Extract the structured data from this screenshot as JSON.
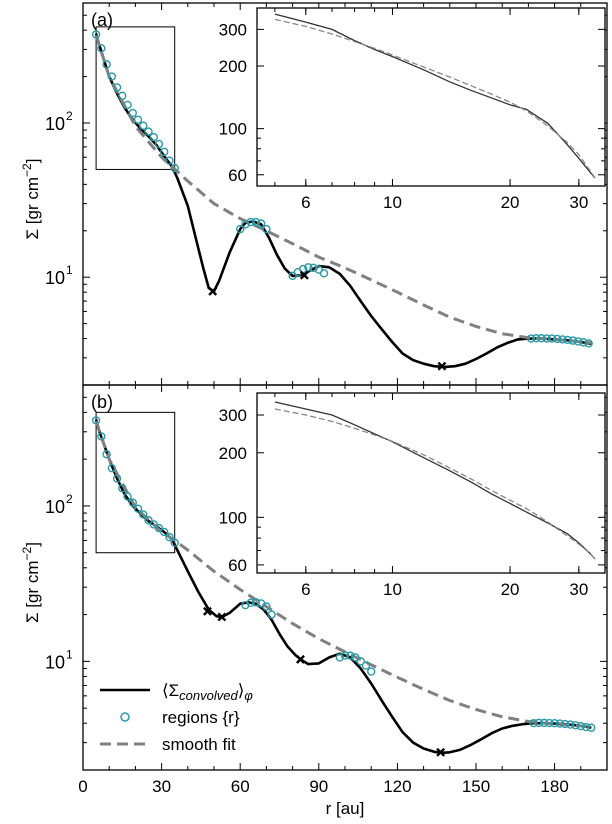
{
  "chart_data": [
    {
      "type": "line",
      "panel_label": "(a)",
      "ylabel_main": "Σ [gr cm",
      "ylabel_exp": "−2",
      "ylabel_tail": "]",
      "xlim": [
        0,
        200
      ],
      "ylim": [
        2.0,
        600
      ],
      "y_scale": "log",
      "y_ticks": [
        {
          "value": 10,
          "base": "10",
          "exp": "1"
        },
        {
          "value": 100,
          "base": "10",
          "exp": "2"
        }
      ],
      "series": [
        {
          "name": "⟨Σconvolved⟩φ",
          "style": "solid-black",
          "x": [
            5,
            6,
            10,
            13,
            16,
            19,
            22,
            25,
            28,
            31,
            34,
            36,
            40,
            43,
            46,
            48,
            50,
            52,
            56,
            60,
            62,
            65,
            68,
            71,
            74,
            77,
            80,
            83,
            86,
            90,
            94,
            98,
            102,
            106,
            110,
            114,
            118,
            122,
            126,
            130,
            134,
            138,
            142,
            146,
            150,
            154,
            158,
            162,
            166,
            170,
            175,
            180,
            185,
            190,
            194
          ],
          "y": [
            380,
            330,
            200,
            155,
            125,
            105,
            92,
            82,
            72,
            61,
            52,
            44,
            29,
            18,
            11.3,
            8.5,
            8.1,
            9.5,
            14.5,
            20.5,
            22.5,
            23,
            22,
            18,
            14,
            11.4,
            10.2,
            10.3,
            10.9,
            11.8,
            11.6,
            10.5,
            8.8,
            7.0,
            5.6,
            4.6,
            3.8,
            3.2,
            2.9,
            2.75,
            2.65,
            2.62,
            2.65,
            2.75,
            2.95,
            3.2,
            3.5,
            3.75,
            3.95,
            4.0,
            4.0,
            3.95,
            3.9,
            3.8,
            3.7
          ]
        },
        {
          "name": "smooth fit",
          "style": "dashed-gray",
          "x": [
            5,
            10,
            20,
            30,
            34,
            40,
            50,
            60,
            70,
            80,
            90,
            100,
            110,
            120,
            130,
            140,
            150,
            160,
            170,
            180,
            194
          ],
          "y": [
            370,
            200,
            95,
            60,
            52,
            42,
            30,
            24,
            20,
            16.5,
            13.5,
            11.5,
            9.6,
            8.0,
            6.6,
            5.5,
            4.8,
            4.3,
            4.05,
            3.95,
            3.75
          ]
        }
      ],
      "regions_label": "regions {r}",
      "region_markers": {
        "x": [
          5,
          7,
          9,
          11,
          13,
          15,
          17,
          19,
          21,
          23,
          25,
          27,
          29,
          31,
          33,
          35,
          60,
          62,
          64,
          66,
          68,
          70,
          80,
          82,
          84,
          86,
          88,
          90,
          92,
          171,
          173,
          175,
          177,
          179,
          181,
          183,
          185,
          187,
          189,
          191,
          193
        ],
        "y": [
          375,
          305,
          240,
          200,
          170,
          150,
          131,
          116,
          105,
          96,
          88,
          81,
          73,
          65,
          57,
          51,
          20.5,
          22,
          22.8,
          22.8,
          22.3,
          20.5,
          10.2,
          10.8,
          11.3,
          11.6,
          11.5,
          11.2,
          10.6,
          4.0,
          4.02,
          4.02,
          4.0,
          4.0,
          3.98,
          3.95,
          3.92,
          3.88,
          3.83,
          3.78,
          3.72
        ]
      },
      "minima_markers": {
        "x": [
          49.5,
          84.5,
          137
        ],
        "y": [
          8.1,
          10.3,
          2.65
        ]
      },
      "zoom_box": {
        "x": [
          5,
          35
        ],
        "y": [
          50,
          420
        ]
      },
      "inset": {
        "x_scale": "log",
        "y_scale": "log",
        "xlim": [
          4.5,
          35
        ],
        "ylim": [
          53,
          380
        ],
        "x_ticks": [
          "6",
          "10",
          "20",
          "30"
        ],
        "x_tick_values": [
          6,
          10,
          20,
          30
        ],
        "y_ticks": [
          "60",
          "100",
          "200",
          "300"
        ],
        "y_tick_values": [
          60,
          100,
          200,
          300
        ],
        "data": {
          "x": [
            5,
            6,
            7,
            8,
            9,
            10,
            12,
            14,
            16,
            18,
            20,
            22,
            25,
            28,
            30,
            32,
            33
          ],
          "y": [
            355,
            325,
            300,
            265,
            240,
            222,
            192,
            168,
            152,
            140,
            130,
            124,
            106,
            84,
            72,
            62,
            58
          ]
        },
        "fit": {
          "x": [
            5,
            6,
            7,
            8,
            9,
            10,
            12,
            14,
            16,
            18,
            20,
            22,
            25,
            28,
            30,
            32,
            33
          ],
          "y": [
            335,
            310,
            285,
            262,
            243,
            226,
            198,
            177,
            160,
            146,
            134,
            122,
            103,
            86,
            75,
            63,
            58
          ]
        }
      }
    },
    {
      "type": "line",
      "panel_label": "(b)",
      "ylabel_main": "Σ [gr cm",
      "ylabel_exp": "−2",
      "ylabel_tail": "]",
      "xlim": [
        0,
        200
      ],
      "ylim": [
        2.0,
        600
      ],
      "y_scale": "log",
      "xlabel": "r [au]",
      "x_ticks": [
        "0",
        "30",
        "60",
        "90",
        "120",
        "150",
        "180"
      ],
      "x_tick_values": [
        0,
        30,
        60,
        90,
        120,
        150,
        180
      ],
      "y_ticks": [
        {
          "value": 10,
          "base": "10",
          "exp": "1"
        },
        {
          "value": 100,
          "base": "10",
          "exp": "2"
        }
      ],
      "series": [
        {
          "name": "⟨Σconvolved⟩φ",
          "style": "solid-black",
          "x": [
            5,
            6,
            10,
            13,
            16,
            19,
            22,
            25,
            28,
            31,
            34,
            36,
            40,
            44,
            48,
            51,
            53,
            56,
            60,
            63,
            66,
            69,
            72,
            75,
            78,
            81,
            83,
            86,
            90,
            94,
            98,
            102,
            106,
            110,
            114,
            118,
            122,
            126,
            130,
            134,
            137,
            140,
            144,
            148,
            152,
            156,
            160,
            164,
            168,
            172,
            176,
            180,
            185,
            190,
            194
          ],
          "y": [
            360,
            310,
            200,
            150,
            118,
            100,
            89,
            80,
            74,
            68,
            61,
            52,
            38,
            28,
            21.5,
            19.5,
            19.3,
            20.5,
            23.5,
            24,
            23.5,
            21.5,
            18.5,
            15,
            12.5,
            11,
            10.3,
            9.6,
            9.7,
            10.6,
            11.2,
            10.6,
            9.0,
            7.2,
            5.6,
            4.4,
            3.5,
            3.0,
            2.75,
            2.62,
            2.58,
            2.6,
            2.7,
            2.9,
            3.15,
            3.45,
            3.7,
            3.85,
            3.95,
            4.0,
            4.0,
            3.98,
            3.93,
            3.85,
            3.75
          ]
        },
        {
          "name": "smooth fit",
          "style": "dashed-gray",
          "x": [
            5,
            10,
            20,
            30,
            35,
            40,
            50,
            60,
            70,
            80,
            90,
            100,
            110,
            120,
            130,
            140,
            150,
            160,
            170,
            180,
            194
          ],
          "y": [
            350,
            200,
            98,
            68,
            60,
            52,
            38,
            29,
            22.5,
            17.5,
            14,
            11.5,
            9.5,
            7.9,
            6.6,
            5.6,
            4.9,
            4.4,
            4.1,
            3.95,
            3.8
          ]
        }
      ],
      "regions_label": "regions {r}",
      "region_markers": {
        "x": [
          5,
          7,
          9,
          11,
          13,
          15,
          17,
          19,
          21,
          23,
          25,
          27,
          29,
          31,
          33,
          35,
          62,
          64,
          66,
          68,
          70,
          72,
          98,
          100,
          102,
          104,
          106,
          108,
          110,
          172,
          174,
          176,
          178,
          180,
          182,
          184,
          186,
          188,
          190,
          192,
          194
        ],
        "y": [
          355,
          280,
          215,
          175,
          150,
          130,
          115,
          105,
          96,
          88,
          81,
          76,
          72,
          68,
          63,
          58,
          23,
          23.8,
          24,
          23.6,
          22.5,
          20,
          10.6,
          10.9,
          10.9,
          10.6,
          10,
          9.4,
          8.6,
          4.0,
          4.02,
          4.02,
          4.01,
          4.0,
          3.98,
          3.95,
          3.92,
          3.88,
          3.83,
          3.78,
          3.74
        ]
      },
      "minima_markers": {
        "x": [
          47.5,
          53,
          83,
          136.5
        ],
        "y": [
          21,
          19.3,
          10.3,
          2.6
        ]
      },
      "zoom_box": {
        "x": [
          5,
          35
        ],
        "y": [
          50,
          400
        ]
      },
      "inset": {
        "x_scale": "log",
        "y_scale": "log",
        "xlim": [
          4.5,
          35
        ],
        "ylim": [
          55,
          380
        ],
        "x_ticks": [
          "6",
          "10",
          "20",
          "30"
        ],
        "x_tick_values": [
          6,
          10,
          20,
          30
        ],
        "y_ticks": [
          "60",
          "100",
          "200",
          "300"
        ],
        "y_tick_values": [
          60,
          100,
          200,
          300
        ],
        "data": {
          "x": [
            5,
            6,
            7,
            8,
            9,
            10,
            12,
            14,
            16,
            18,
            20,
            22,
            25,
            28,
            30,
            32,
            33
          ],
          "y": [
            345,
            320,
            300,
            270,
            245,
            225,
            190,
            165,
            145,
            128,
            116,
            106,
            94,
            84,
            76,
            68,
            64
          ]
        },
        "fit": {
          "x": [
            5,
            6,
            7,
            8,
            9,
            10,
            12,
            14,
            16,
            18,
            20,
            22,
            25,
            28,
            30,
            32,
            33
          ],
          "y": [
            320,
            300,
            280,
            260,
            242,
            226,
            196,
            170,
            150,
            133,
            120,
            110,
            95,
            82,
            75,
            68,
            64
          ]
        }
      }
    }
  ],
  "legend": {
    "entries": [
      {
        "main": "⟨Σ",
        "sub": "convolved",
        "tail": "⟩",
        "sub2": "φ"
      },
      {
        "text": "regions {r}"
      },
      {
        "text": "smooth fit"
      }
    ]
  },
  "colors": {
    "data_line": "#000000",
    "fit_line": "#808080",
    "region_marker": "#2a9aa8",
    "minima_marker": "#000000"
  }
}
